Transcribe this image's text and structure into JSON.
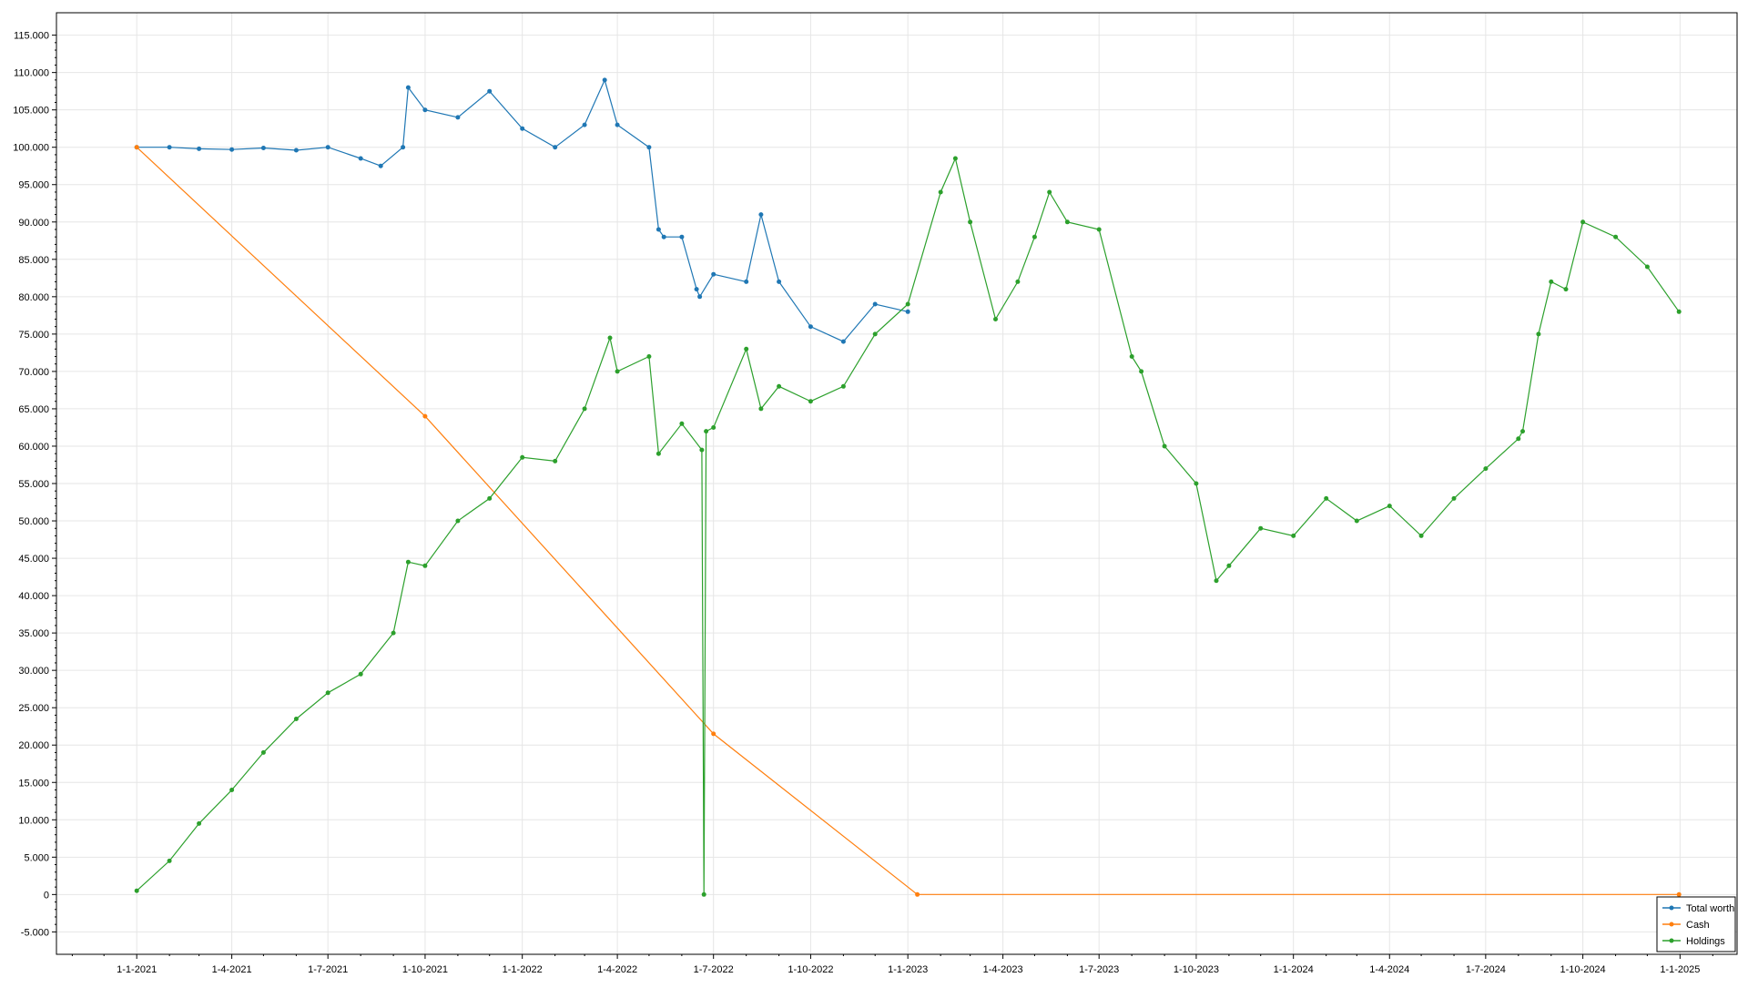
{
  "chart_data": {
    "type": "line",
    "title": "",
    "xlabel": "",
    "ylabel": "",
    "x_range": [
      "2020-10-17",
      "2025-02-24"
    ],
    "ylim": [
      -8000,
      118000
    ],
    "x_ticks": [
      {
        "date": "2021-01-01",
        "label": "1-1-2021"
      },
      {
        "date": "2021-04-01",
        "label": "1-4-2021"
      },
      {
        "date": "2021-07-01",
        "label": "1-7-2021"
      },
      {
        "date": "2021-10-01",
        "label": "1-10-2021"
      },
      {
        "date": "2022-01-01",
        "label": "1-1-2022"
      },
      {
        "date": "2022-04-01",
        "label": "1-4-2022"
      },
      {
        "date": "2022-07-01",
        "label": "1-7-2022"
      },
      {
        "date": "2022-10-01",
        "label": "1-10-2022"
      },
      {
        "date": "2023-01-01",
        "label": "1-1-2023"
      },
      {
        "date": "2023-04-01",
        "label": "1-4-2023"
      },
      {
        "date": "2023-07-01",
        "label": "1-7-2023"
      },
      {
        "date": "2023-10-01",
        "label": "1-10-2023"
      },
      {
        "date": "2024-01-01",
        "label": "1-1-2024"
      },
      {
        "date": "2024-04-01",
        "label": "1-4-2024"
      },
      {
        "date": "2024-07-01",
        "label": "1-7-2024"
      },
      {
        "date": "2024-10-01",
        "label": "1-10-2024"
      },
      {
        "date": "2025-01-01",
        "label": "1-1-2025"
      }
    ],
    "y_ticks": [
      {
        "value": 115000,
        "label": "115.000"
      },
      {
        "value": 110000,
        "label": "110.000"
      },
      {
        "value": 105000,
        "label": "105.000"
      },
      {
        "value": 100000,
        "label": "100.000"
      },
      {
        "value": 95000,
        "label": "95.000"
      },
      {
        "value": 90000,
        "label": "90.000"
      },
      {
        "value": 85000,
        "label": "85.000"
      },
      {
        "value": 80000,
        "label": "80.000"
      },
      {
        "value": 75000,
        "label": "75.000"
      },
      {
        "value": 70000,
        "label": "70.000"
      },
      {
        "value": 65000,
        "label": "65.000"
      },
      {
        "value": 60000,
        "label": "60.000"
      },
      {
        "value": 55000,
        "label": "55.000"
      },
      {
        "value": 50000,
        "label": "50.000"
      },
      {
        "value": 45000,
        "label": "45.000"
      },
      {
        "value": 40000,
        "label": "40.000"
      },
      {
        "value": 35000,
        "label": "35.000"
      },
      {
        "value": 30000,
        "label": "30.000"
      },
      {
        "value": 25000,
        "label": "25.000"
      },
      {
        "value": 20000,
        "label": "20.000"
      },
      {
        "value": 15000,
        "label": "15.000"
      },
      {
        "value": 10000,
        "label": "10.000"
      },
      {
        "value": 5000,
        "label": "5.000"
      },
      {
        "value": 0,
        "label": "0"
      },
      {
        "value": -5000,
        "label": "-5.000"
      }
    ],
    "grid": true,
    "legend": {
      "placement": "bottom-right"
    },
    "series": [
      {
        "name": "Total worth",
        "color": "#1f77b4",
        "x": [
          "2021-01-01",
          "2021-02-01",
          "2021-03-01",
          "2021-04-01",
          "2021-05-01",
          "2021-06-01",
          "2021-07-01",
          "2021-08-01",
          "2021-08-20",
          "2021-09-10",
          "2021-09-15",
          "2021-10-01",
          "2021-11-01",
          "2021-12-01",
          "2022-01-01",
          "2022-02-01",
          "2022-03-01",
          "2022-03-20",
          "2022-04-01",
          "2022-05-01",
          "2022-05-10",
          "2022-05-15",
          "2022-06-01",
          "2022-06-15",
          "2022-06-18",
          "2022-07-01",
          "2022-08-01",
          "2022-08-15",
          "2022-09-01",
          "2022-10-01",
          "2022-11-01",
          "2022-12-01",
          "2023-01-01"
        ],
        "y": [
          100000,
          100000,
          99800,
          99700,
          99900,
          99600,
          100000,
          98500,
          97500,
          100000,
          108000,
          105000,
          104000,
          107500,
          102500,
          100000,
          103000,
          109000,
          103000,
          100000,
          89000,
          88000,
          88000,
          81000,
          80000,
          83000,
          82000,
          91000,
          82000,
          76000,
          74000,
          79000,
          78000
        ]
      },
      {
        "name": "Cash",
        "color": "#ff7f0e",
        "x": [
          "2021-01-01",
          "2021-10-01",
          "2022-07-01",
          "2023-01-10",
          "2024-12-31"
        ],
        "y": [
          100000,
          64000,
          21500,
          0,
          0
        ]
      },
      {
        "name": "Holdings",
        "color": "#2ca02c",
        "x": [
          "2021-01-01",
          "2021-02-01",
          "2021-03-01",
          "2021-04-01",
          "2021-05-01",
          "2021-06-01",
          "2021-07-01",
          "2021-08-01",
          "2021-09-01",
          "2021-09-15",
          "2021-10-01",
          "2021-11-01",
          "2021-12-01",
          "2022-01-01",
          "2022-02-01",
          "2022-03-01",
          "2022-03-25",
          "2022-04-01",
          "2022-05-01",
          "2022-05-10",
          "2022-06-01",
          "2022-06-20",
          "2022-06-22",
          "2022-06-24",
          "2022-07-01",
          "2022-08-01",
          "2022-08-15",
          "2022-09-01",
          "2022-10-01",
          "2022-11-01",
          "2022-12-01",
          "2023-01-01",
          "2023-02-01",
          "2023-02-15",
          "2023-03-01",
          "2023-03-25",
          "2023-04-15",
          "2023-05-01",
          "2023-05-15",
          "2023-06-01",
          "2023-07-01",
          "2023-08-01",
          "2023-08-10",
          "2023-09-01",
          "2023-10-01",
          "2023-10-20",
          "2023-11-01",
          "2023-12-01",
          "2024-01-01",
          "2024-02-01",
          "2024-03-01",
          "2024-04-01",
          "2024-05-01",
          "2024-06-01",
          "2024-07-01",
          "2024-08-01",
          "2024-08-05",
          "2024-08-20",
          "2024-09-01",
          "2024-09-15",
          "2024-10-01",
          "2024-11-01",
          "2024-12-01",
          "2024-12-31"
        ],
        "y": [
          500,
          4500,
          9500,
          14000,
          19000,
          23500,
          27000,
          29500,
          35000,
          44500,
          44000,
          50000,
          53000,
          58500,
          58000,
          65000,
          74500,
          70000,
          72000,
          59000,
          63000,
          59500,
          0,
          62000,
          62500,
          73000,
          65000,
          68000,
          66000,
          68000,
          75000,
          79000,
          94000,
          98500,
          90000,
          77000,
          82000,
          88000,
          94000,
          90000,
          89000,
          72000,
          70000,
          60000,
          55000,
          42000,
          44000,
          49000,
          48000,
          53000,
          50000,
          52000,
          48000,
          53000,
          57000,
          61000,
          62000,
          75000,
          82000,
          81000,
          90000,
          88000,
          84000,
          78000
        ]
      }
    ]
  }
}
